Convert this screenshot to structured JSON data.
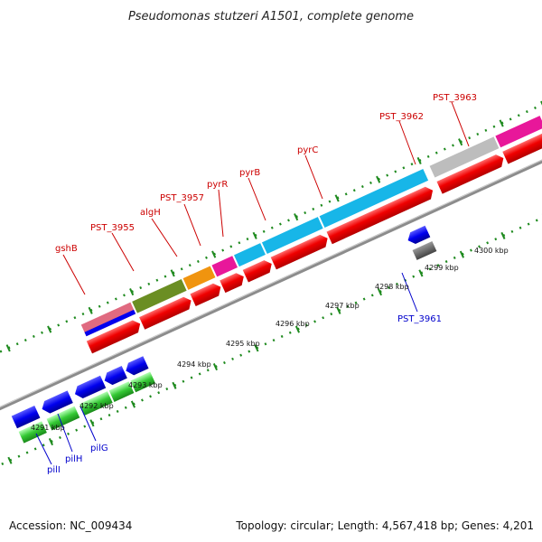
{
  "title": "Pseudomonas stutzeri A1501, complete genome",
  "footer": {
    "accession": "Accession: NC_009434",
    "summary": "Topology: circular; Length: 4,567,418 bp; Genes: 4,201"
  },
  "colors": {
    "forward_label": "#cc0000",
    "reverse_label": "#0000cc",
    "ticks": "#1e8a1e",
    "backbone": "#8c8c8c"
  },
  "forward_genes": [
    {
      "label": "gshB",
      "color": "#e06a80"
    },
    {
      "label": "PST_3955",
      "color": "#6b8e23"
    },
    {
      "label": "algH",
      "color": "#f0940f"
    },
    {
      "label": "PST_3957",
      "color": "#e8179a"
    },
    {
      "label": "pyrR",
      "color": "#17b6e8"
    },
    {
      "label": "pyrB",
      "color": "#17b6e8"
    },
    {
      "label": "pyrC",
      "color": "#17b6e8"
    },
    {
      "label": "PST_3962",
      "color": "#bdbdbd"
    },
    {
      "label": "PST_3963",
      "color": "#e8179a"
    }
  ],
  "reverse_genes": [
    {
      "label": "pilI"
    },
    {
      "label": "pilH"
    },
    {
      "label": "pilG"
    },
    {
      "label": "PST_3961"
    }
  ],
  "kbp_ticks": [
    "4291 kbp",
    "4292 kbp",
    "4293 kbp",
    "4294 kbp",
    "4295 kbp",
    "4296 kbp",
    "4297 kbp",
    "4298 kbp",
    "4299 kbp",
    "4300 kbp"
  ]
}
